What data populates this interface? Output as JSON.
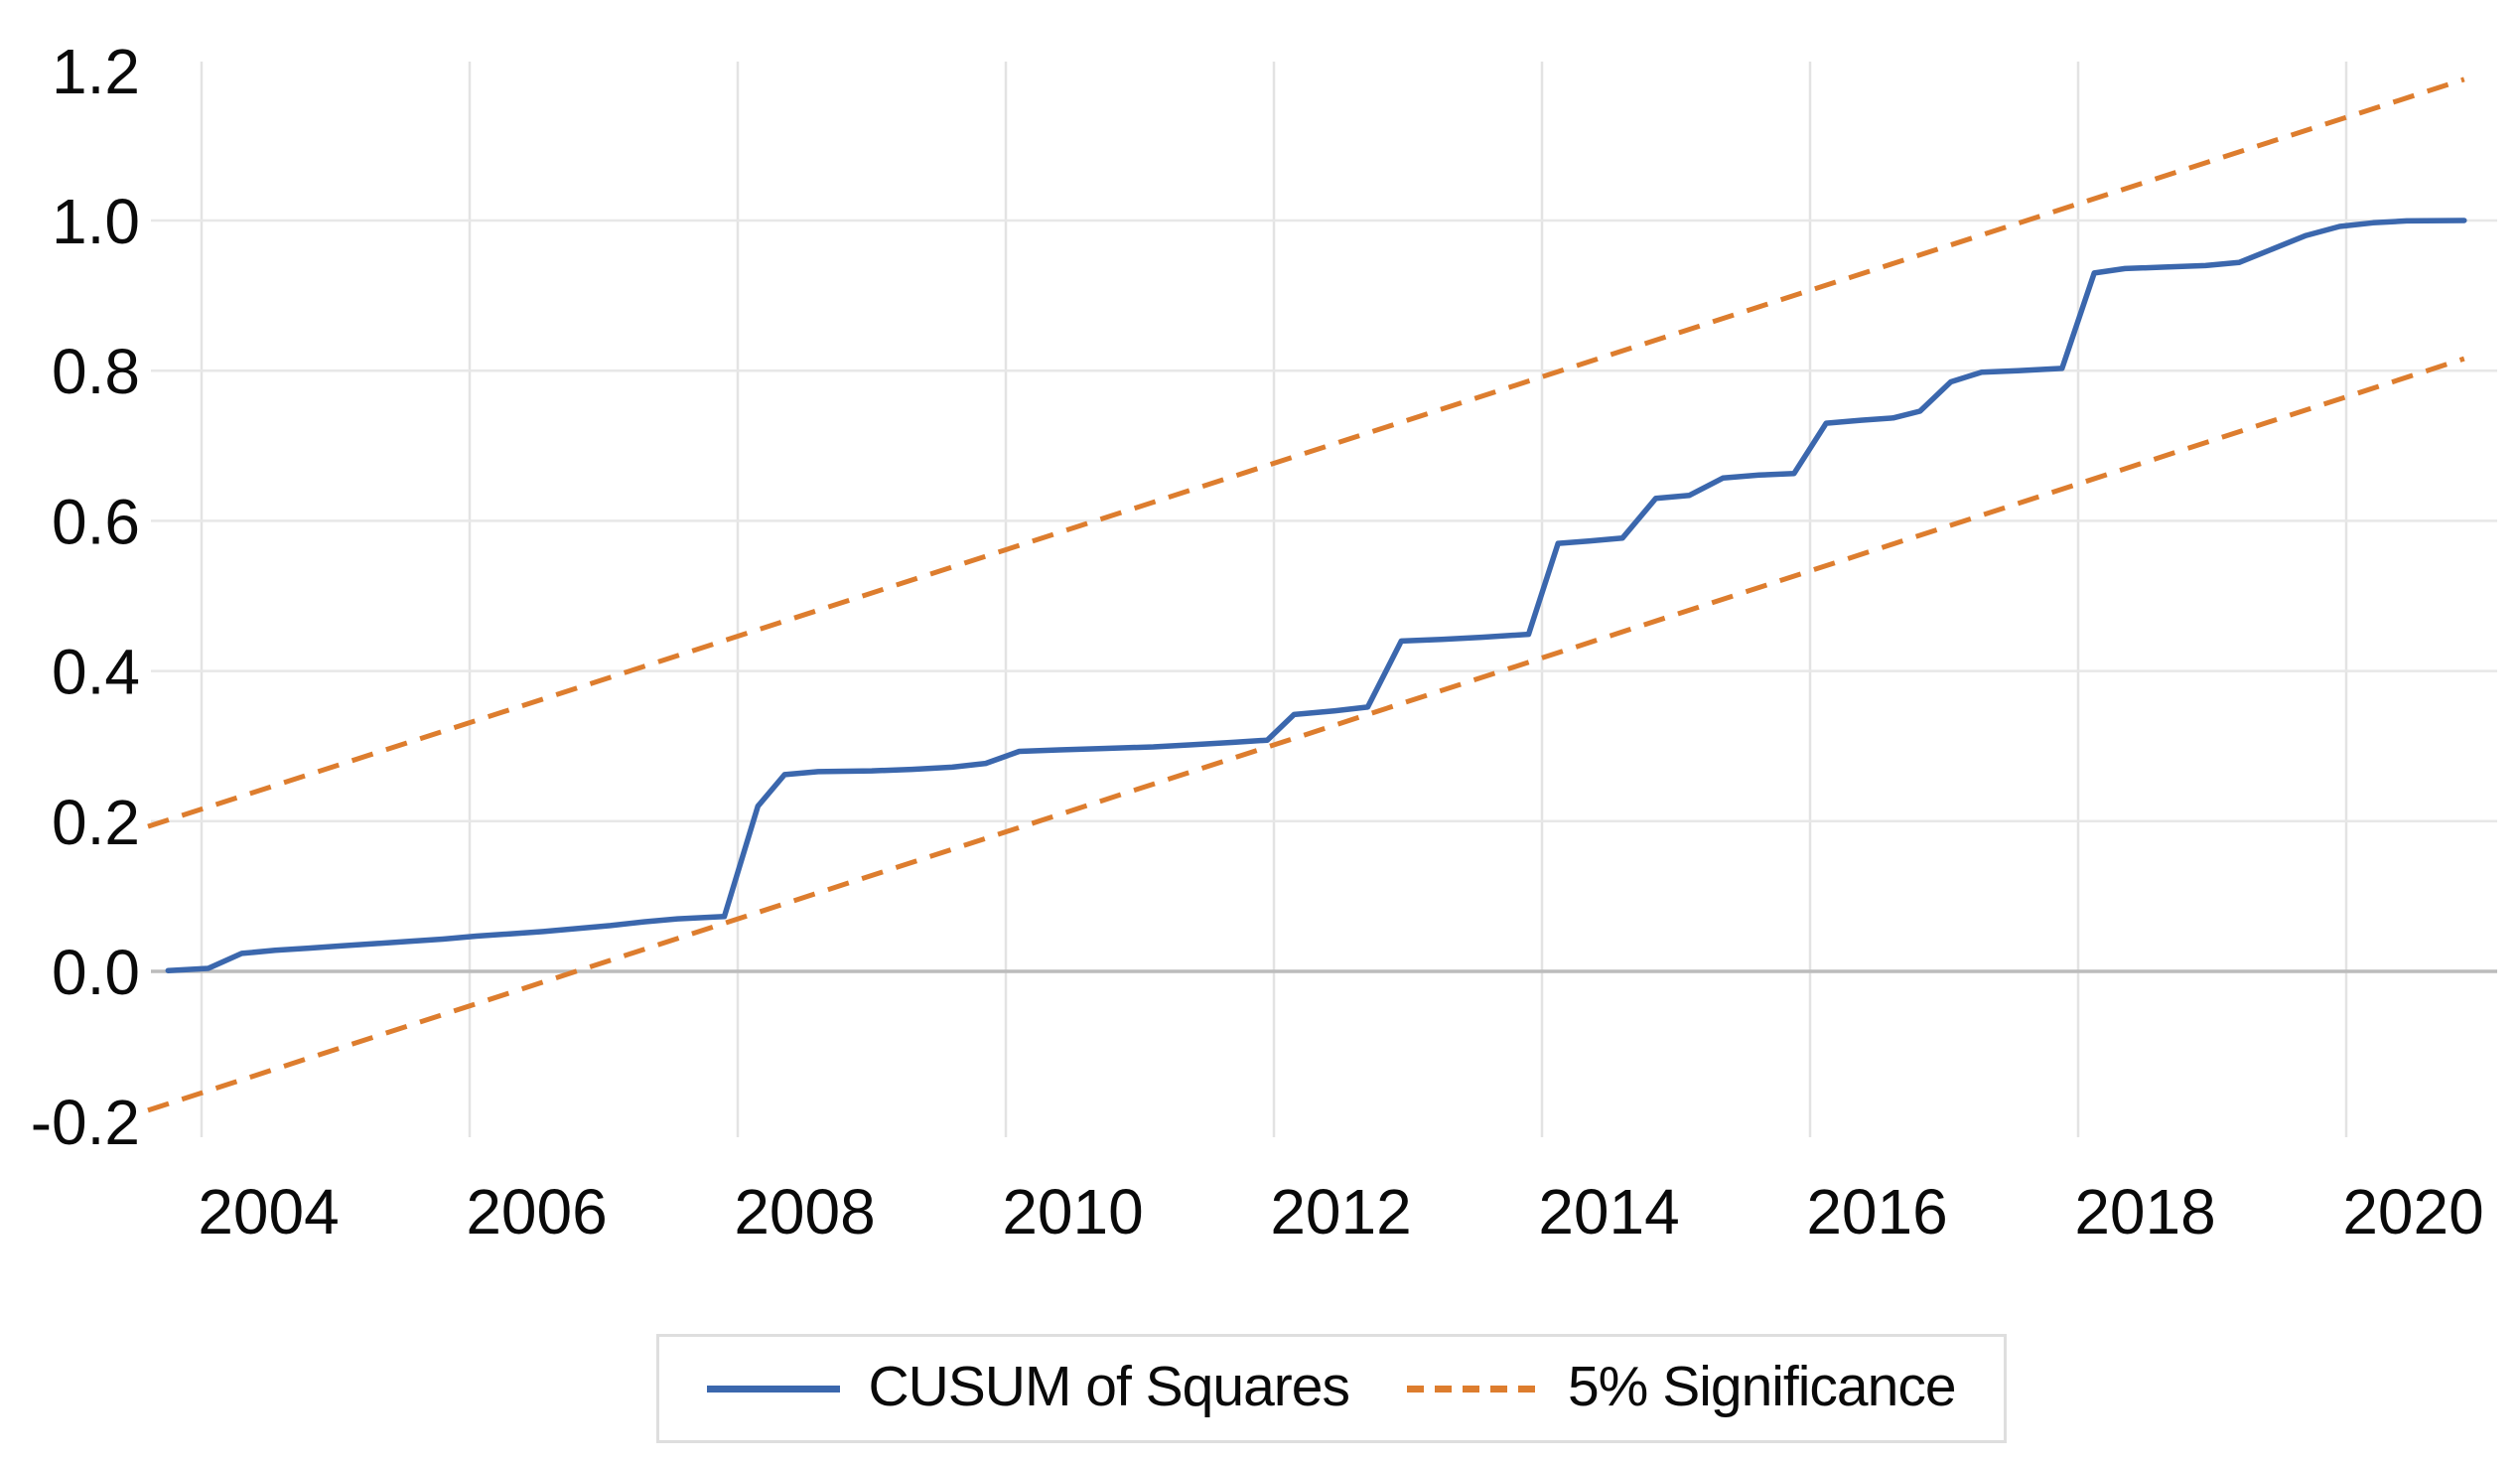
{
  "page": {
    "background": "#ffffff"
  },
  "chart_data": {
    "type": "line",
    "title": "",
    "x_axis": {
      "tick_labels": [
        "2004",
        "2006",
        "2008",
        "2010",
        "2012",
        "2014",
        "2016",
        "2018",
        "2020"
      ],
      "tick_values": [
        2004,
        2006,
        2008,
        2010,
        2012,
        2014,
        2016,
        2018,
        2020
      ],
      "range": [
        2003.6,
        2021.0
      ]
    },
    "y_axis": {
      "tick_labels": [
        "1.2",
        "1.0",
        "0.8",
        "0.6",
        "0.4",
        "0.2",
        "0.0",
        "-0.2"
      ],
      "tick_values": [
        1.2,
        1.0,
        0.8,
        0.6,
        0.4,
        0.2,
        0.0,
        -0.2
      ],
      "range": [
        -0.2,
        1.2
      ]
    },
    "grid": {
      "show": true,
      "horizontal_values": [
        1.0,
        0.8,
        0.6,
        0.4,
        0.2
      ],
      "zero_line_value": 0.0,
      "line_color": "#e7e7e7",
      "vertical_line_color": "#e3e3e3",
      "zero_line_color": "#bcbcbc"
    },
    "series": [
      {
        "name": "CUSUM of Squares",
        "style": "solid",
        "color": "#3b67ad",
        "points": [
          [
            2003.75,
            0.001
          ],
          [
            2004.05,
            0.004
          ],
          [
            2004.3,
            0.024
          ],
          [
            2004.55,
            0.028
          ],
          [
            2004.8,
            0.031
          ],
          [
            2005.05,
            0.034
          ],
          [
            2005.3,
            0.037
          ],
          [
            2005.55,
            0.04
          ],
          [
            2005.8,
            0.043
          ],
          [
            2006.05,
            0.047
          ],
          [
            2006.3,
            0.05
          ],
          [
            2006.55,
            0.053
          ],
          [
            2006.8,
            0.057
          ],
          [
            2007.05,
            0.061
          ],
          [
            2007.3,
            0.066
          ],
          [
            2007.55,
            0.07
          ],
          [
            2007.9,
            0.073
          ],
          [
            2008.15,
            0.22
          ],
          [
            2008.35,
            0.262
          ],
          [
            2008.6,
            0.266
          ],
          [
            2009.0,
            0.267
          ],
          [
            2009.3,
            0.269
          ],
          [
            2009.6,
            0.272
          ],
          [
            2009.85,
            0.277
          ],
          [
            2010.1,
            0.293
          ],
          [
            2010.4,
            0.295
          ],
          [
            2010.75,
            0.297
          ],
          [
            2011.1,
            0.299
          ],
          [
            2011.4,
            0.302
          ],
          [
            2011.7,
            0.305
          ],
          [
            2011.95,
            0.308
          ],
          [
            2012.15,
            0.342
          ],
          [
            2012.45,
            0.347
          ],
          [
            2012.7,
            0.352
          ],
          [
            2012.95,
            0.44
          ],
          [
            2013.25,
            0.442
          ],
          [
            2013.55,
            0.445
          ],
          [
            2013.9,
            0.449
          ],
          [
            2014.12,
            0.57
          ],
          [
            2014.35,
            0.573
          ],
          [
            2014.6,
            0.577
          ],
          [
            2014.85,
            0.63
          ],
          [
            2015.1,
            0.634
          ],
          [
            2015.35,
            0.657
          ],
          [
            2015.62,
            0.661
          ],
          [
            2015.88,
            0.663
          ],
          [
            2016.12,
            0.73
          ],
          [
            2016.38,
            0.734
          ],
          [
            2016.62,
            0.737
          ],
          [
            2016.82,
            0.746
          ],
          [
            2017.05,
            0.785
          ],
          [
            2017.28,
            0.798
          ],
          [
            2017.55,
            0.8
          ],
          [
            2017.88,
            0.803
          ],
          [
            2018.12,
            0.93
          ],
          [
            2018.35,
            0.936
          ],
          [
            2018.65,
            0.938
          ],
          [
            2018.95,
            0.94
          ],
          [
            2019.2,
            0.944
          ],
          [
            2019.45,
            0.962
          ],
          [
            2019.7,
            0.98
          ],
          [
            2019.95,
            0.992
          ],
          [
            2020.2,
            0.997
          ],
          [
            2020.45,
            0.9995
          ],
          [
            2020.88,
            1.0
          ]
        ]
      },
      {
        "name": "5% Significance",
        "style": "dashed",
        "color": "#dd7d2e",
        "upper_points": [
          [
            2003.6,
            0.193
          ],
          [
            2020.88,
            1.188
          ]
        ],
        "lower_points": [
          [
            2003.6,
            -0.185
          ],
          [
            2020.88,
            0.816
          ]
        ]
      }
    ],
    "legend": {
      "position": "bottom",
      "items": [
        {
          "label": "CUSUM of Squares",
          "swatch": "solid-line",
          "color": "#3b67ad"
        },
        {
          "label": "5% Significance",
          "swatch": "dashed-line",
          "color": "#dd7d2e"
        }
      ]
    }
  }
}
